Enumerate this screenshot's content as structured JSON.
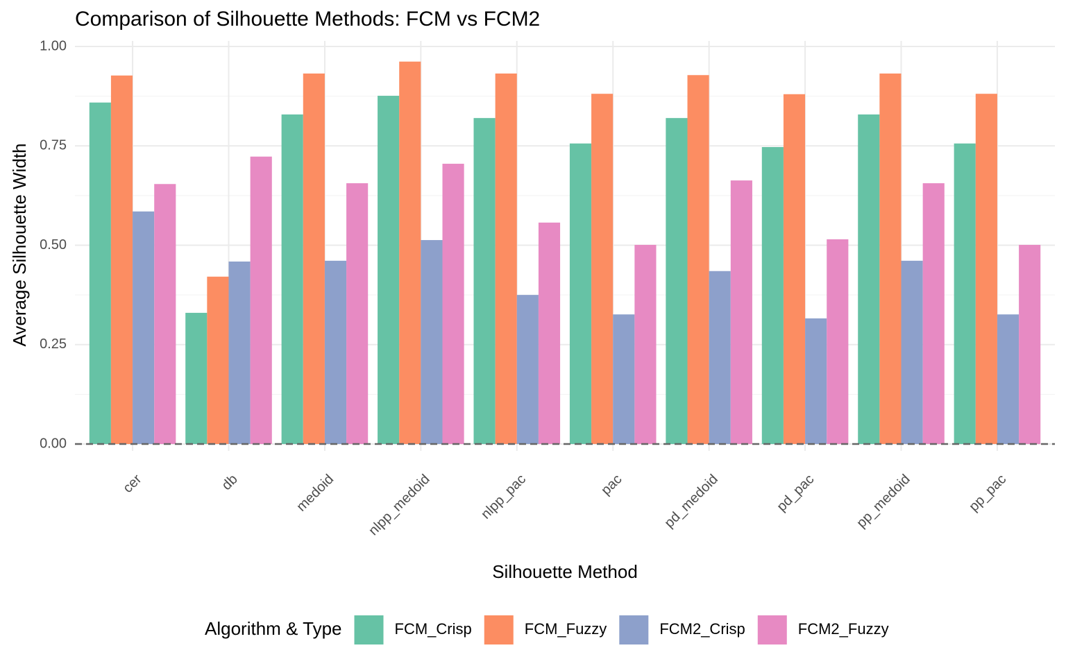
{
  "chart_data": {
    "type": "bar",
    "title": "Comparison of Silhouette Methods: FCM vs FCM2",
    "x_label": "Silhouette Method",
    "y_label": "Average Silhouette Width",
    "categories": [
      "cer",
      "db",
      "medoid",
      "nlpp_medoid",
      "nlpp_pac",
      "pac",
      "pd_medoid",
      "pd_pac",
      "pp_medoid",
      "pp_pac"
    ],
    "series": [
      {
        "name": "FCM_Crisp",
        "color": "#66c2a5",
        "values": [
          0.859,
          0.33,
          0.829,
          0.876,
          0.82,
          0.756,
          0.82,
          0.747,
          0.829,
          0.756
        ]
      },
      {
        "name": "FCM_Fuzzy",
        "color": "#fc8d62",
        "values": [
          0.927,
          0.421,
          0.932,
          0.962,
          0.932,
          0.881,
          0.928,
          0.88,
          0.932,
          0.881
        ]
      },
      {
        "name": "FCM2_Crisp",
        "color": "#8da0cb",
        "values": [
          0.585,
          0.459,
          0.461,
          0.513,
          0.375,
          0.326,
          0.435,
          0.316,
          0.461,
          0.326
        ]
      },
      {
        "name": "FCM2_Fuzzy",
        "color": "#e78ac3",
        "values": [
          0.654,
          0.723,
          0.656,
          0.705,
          0.557,
          0.501,
          0.663,
          0.515,
          0.656,
          0.501
        ]
      }
    ],
    "legend_title": "Algorithm & Type",
    "legend_position": "bottom",
    "ylim": [
      0,
      1
    ],
    "yticks": [
      {
        "value": 0,
        "label": "0.00"
      },
      {
        "value": 0.25,
        "label": "0.25"
      },
      {
        "value": 0.5,
        "label": "0.50"
      },
      {
        "value": 0.75,
        "label": "0.75"
      },
      {
        "value": 1,
        "label": "1.00"
      }
    ],
    "hline": 0,
    "grid": true
  }
}
